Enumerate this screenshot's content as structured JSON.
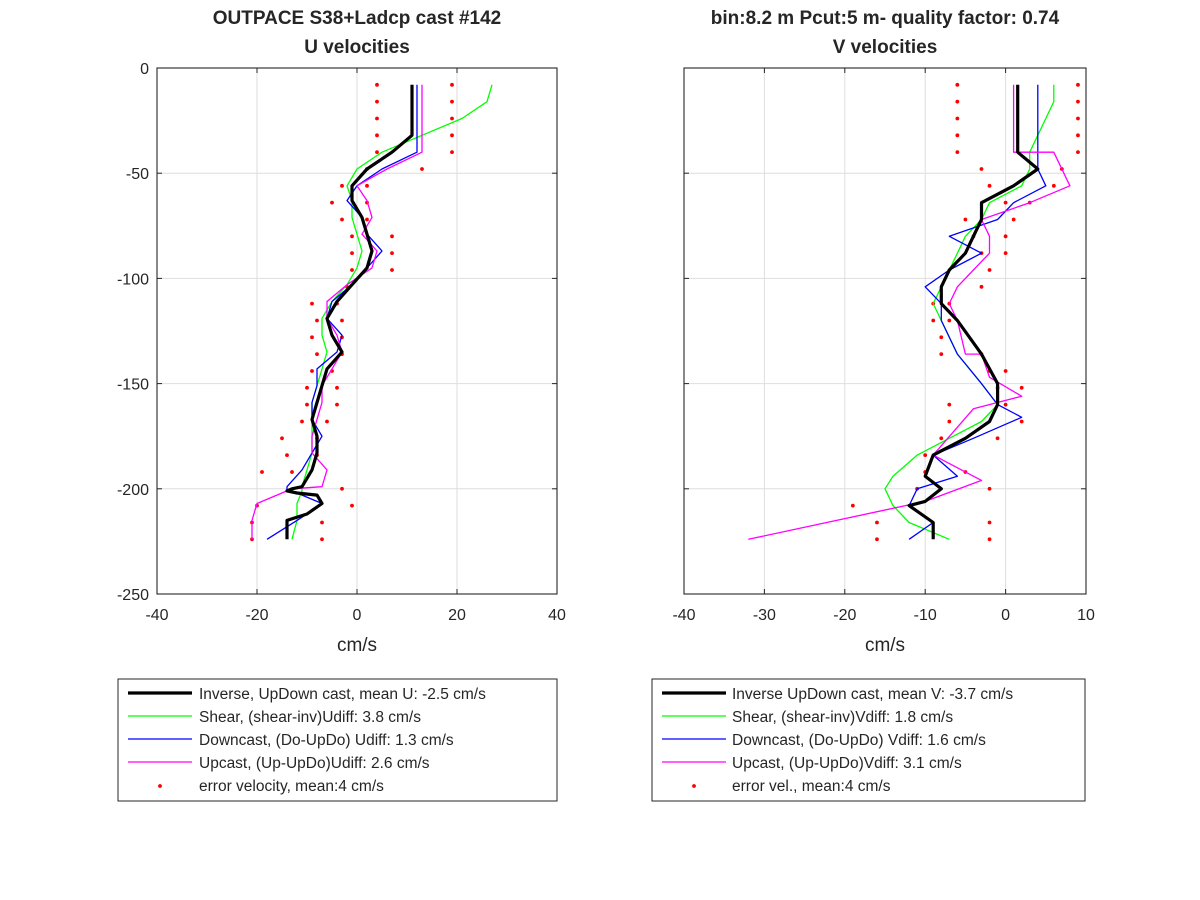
{
  "chart_data": [
    {
      "type": "line",
      "title": [
        "OUTPACE S38+Ladcp cast #142",
        "U velocities"
      ],
      "xlabel": "cm/s",
      "ylabel": "",
      "xlim": [
        -40,
        40
      ],
      "ylim": [
        -250,
        0
      ],
      "xticks": [
        -40,
        -20,
        0,
        20,
        40
      ],
      "yticks": [
        0,
        -50,
        -100,
        -150,
        -200,
        -250
      ],
      "grid": true,
      "legend_position": "below",
      "series": [
        {
          "name": "Inverse, UpDown cast, mean U:  -2.5 cm/s",
          "color": "#000000",
          "width": 3.2,
          "x": [
            11,
            11,
            11,
            11,
            7,
            2,
            -1,
            -1,
            1,
            2,
            3,
            2,
            -1,
            -4,
            -6,
            -5,
            -3,
            -6,
            -7,
            -8,
            -9,
            -8,
            -8,
            -9,
            -11,
            -13,
            -14,
            -12,
            -8,
            -7,
            -10,
            -14,
            -14
          ],
          "y": [
            -8,
            -16,
            -24,
            -32,
            -40,
            -48,
            -56,
            -63,
            -71,
            -79,
            -87,
            -95,
            -103,
            -111,
            -119,
            -127,
            -135,
            -143,
            -151,
            -159,
            -167,
            -175,
            -183,
            -191,
            -199,
            -200,
            -201,
            -202,
            -203,
            -207,
            -212,
            -215,
            -224
          ]
        },
        {
          "name": "Shear, (shear-inv)Udiff:  3.8 cm/s",
          "color": "#00ff00",
          "width": 1.3,
          "x": [
            27,
            26,
            21,
            13,
            5,
            0,
            -2,
            -1,
            -1,
            0,
            1,
            0,
            -2,
            -5,
            -7,
            -7,
            -6,
            -7,
            -8,
            -9,
            -9,
            -9,
            -9,
            -10,
            -11,
            -11,
            -11,
            -12,
            -12,
            -12,
            -13
          ],
          "y": [
            -8,
            -16,
            -24,
            -32,
            -40,
            -48,
            -56,
            -63,
            -71,
            -79,
            -87,
            -95,
            -103,
            -111,
            -119,
            -127,
            -135,
            -143,
            -151,
            -159,
            -167,
            -175,
            -183,
            -191,
            -199,
            -200,
            -201,
            -207,
            -212,
            -215,
            -224
          ]
        },
        {
          "name": "Downcast, (Do-UpDo) Udiff:  1.3 cm/s",
          "color": "#0000ff",
          "width": 1.3,
          "x": [
            12,
            12,
            12,
            12,
            12,
            5,
            0,
            -2,
            1,
            2,
            5,
            2,
            -1,
            -5,
            -6,
            -3,
            -4,
            -8,
            -8,
            -9,
            -9,
            -7,
            -9,
            -11,
            -14,
            -14,
            -14,
            -12,
            -7,
            -10,
            -12,
            -18
          ],
          "y": [
            -8,
            -16,
            -24,
            -32,
            -40,
            -48,
            -56,
            -63,
            -71,
            -79,
            -87,
            -95,
            -103,
            -111,
            -119,
            -127,
            -135,
            -143,
            -151,
            -159,
            -167,
            -175,
            -183,
            -191,
            -199,
            -200,
            -201,
            -202,
            -207,
            -212,
            -215,
            -224
          ]
        },
        {
          "name": "Upcast, (Up-UpDo)Udiff:  2.6 cm/s",
          "color": "#ff00ff",
          "width": 1.3,
          "x": [
            13,
            13,
            13,
            13,
            13,
            6,
            0,
            2,
            3,
            1,
            4,
            3,
            -2,
            -6,
            -6,
            -4,
            -3,
            -5,
            -7,
            -7,
            -8,
            -9,
            -9,
            -6,
            -7,
            -13,
            -14,
            -20,
            -21,
            -21
          ],
          "y": [
            -8,
            -16,
            -24,
            -32,
            -40,
            -48,
            -56,
            -63,
            -71,
            -79,
            -87,
            -95,
            -103,
            -111,
            -119,
            -127,
            -135,
            -143,
            -151,
            -159,
            -167,
            -175,
            -183,
            -191,
            -199,
            -200,
            -201,
            -207,
            -215,
            -224
          ]
        },
        {
          "name": "error velocity, mean:4 cm/s",
          "color": "#ff0000",
          "marker": "dot",
          "points": [
            [
              4,
              -8
            ],
            [
              19,
              -8
            ],
            [
              4,
              -16
            ],
            [
              19,
              -16
            ],
            [
              4,
              -24
            ],
            [
              19,
              -24
            ],
            [
              4,
              -32
            ],
            [
              19,
              -32
            ],
            [
              4,
              -40
            ],
            [
              19,
              -40
            ],
            [
              13,
              -48
            ],
            [
              2,
              -48
            ],
            [
              -3,
              -56
            ],
            [
              2,
              -56
            ],
            [
              -5,
              -64
            ],
            [
              2,
              -64
            ],
            [
              -3,
              -72
            ],
            [
              2,
              -72
            ],
            [
              -1,
              -80
            ],
            [
              7,
              -80
            ],
            [
              -1,
              -88
            ],
            [
              7,
              -88
            ],
            [
              -1,
              -96
            ],
            [
              7,
              -96
            ],
            [
              -2,
              -104
            ],
            [
              -9,
              -112
            ],
            [
              -4,
              -112
            ],
            [
              -8,
              -120
            ],
            [
              -3,
              -120
            ],
            [
              -9,
              -128
            ],
            [
              -3,
              -128
            ],
            [
              -8,
              -136
            ],
            [
              -3,
              -136
            ],
            [
              -9,
              -144
            ],
            [
              -5,
              -144
            ],
            [
              -10,
              -152
            ],
            [
              -4,
              -152
            ],
            [
              -10,
              -160
            ],
            [
              -4,
              -160
            ],
            [
              -11,
              -168
            ],
            [
              -6,
              -168
            ],
            [
              -15,
              -176
            ],
            [
              -8,
              -176
            ],
            [
              -14,
              -184
            ],
            [
              -8,
              -184
            ],
            [
              -19,
              -192
            ],
            [
              -13,
              -192
            ],
            [
              -3,
              -200
            ],
            [
              -20,
              -208
            ],
            [
              -1,
              -208
            ],
            [
              -21,
              -216
            ],
            [
              -7,
              -216
            ],
            [
              -21,
              -224
            ],
            [
              -7,
              -224
            ]
          ]
        }
      ]
    },
    {
      "type": "line",
      "title": [
        "bin:8.2 m  Pcut:5 m- quality factor:  0.74",
        "V velocities"
      ],
      "xlabel": "cm/s",
      "ylabel": "",
      "xlim": [
        -40,
        10
      ],
      "ylim": [
        -250,
        0
      ],
      "xticks": [
        -40,
        -30,
        -20,
        -10,
        0,
        10
      ],
      "yticks": [
        0,
        -50,
        -100,
        -150,
        -200,
        -250
      ],
      "grid": true,
      "legend_position": "below",
      "series": [
        {
          "name": "Inverse UpDown cast, mean V:  -3.7 cm/s",
          "color": "#000000",
          "width": 3.2,
          "x": [
            1.5,
            1.5,
            1.5,
            1.5,
            1.5,
            4,
            1,
            -3,
            -3,
            -4,
            -5,
            -7,
            -8,
            -8,
            -6,
            -3,
            -1,
            -1,
            -2,
            -5,
            -9,
            -10,
            -8,
            -10,
            -12,
            -9,
            -9,
            -9
          ],
          "y": [
            -8,
            -16,
            -24,
            -32,
            -40,
            -48,
            -56,
            -64,
            -72,
            -80,
            -88,
            -96,
            -104,
            -112,
            -120,
            -136,
            -150,
            -160,
            -168,
            -176,
            -184,
            -194,
            -200,
            -206,
            -208,
            -216,
            -218,
            -224
          ]
        },
        {
          "name": "Shear, (shear-inv)Vdiff:  1.8 cm/s",
          "color": "#00ff00",
          "width": 1.3,
          "x": [
            6,
            6,
            5,
            4,
            3,
            3,
            2,
            -2,
            -3,
            -5,
            -6,
            -7,
            -8,
            -9,
            -8,
            -6,
            -3,
            -1,
            -3,
            -7,
            -11,
            -14,
            -15,
            -14,
            -12,
            -7
          ],
          "y": [
            -8,
            -16,
            -24,
            -32,
            -40,
            -48,
            -56,
            -64,
            -72,
            -80,
            -88,
            -96,
            -104,
            -112,
            -120,
            -136,
            -150,
            -160,
            -168,
            -176,
            -184,
            -194,
            -200,
            -208,
            -216,
            -224
          ]
        },
        {
          "name": "Downcast, (Do-UpDo) Vdiff:  1.6 cm/s",
          "color": "#0000ff",
          "width": 1.3,
          "x": [
            4,
            4,
            4,
            4,
            4,
            4,
            5,
            1,
            -1,
            -7,
            -3,
            -7,
            -10,
            -8,
            -8,
            -6,
            -3,
            -1,
            2,
            -4,
            -9,
            -6,
            -11,
            -12,
            -9,
            -12
          ],
          "y": [
            -8,
            -16,
            -24,
            -32,
            -40,
            -48,
            -56,
            -64,
            -72,
            -80,
            -88,
            -96,
            -104,
            -112,
            -120,
            -136,
            -150,
            -160,
            -166,
            -176,
            -184,
            -194,
            -200,
            -208,
            -216,
            -224
          ]
        },
        {
          "name": "Upcast, (Up-UpDo)Vdiff:  3.1 cm/s",
          "color": "#ff00ff",
          "width": 1.3,
          "x": [
            1,
            1,
            1,
            1,
            1,
            6,
            8,
            3,
            -3,
            -2,
            -2,
            -4,
            -6,
            -7,
            -6,
            -5,
            -3,
            -2,
            2,
            -4,
            -9,
            -3,
            -10,
            -32
          ],
          "y": [
            -8,
            -16,
            -24,
            -32,
            -40,
            -40,
            -56,
            -64,
            -72,
            -80,
            -88,
            -96,
            -104,
            -112,
            -120,
            -136,
            -136,
            -147,
            -156,
            -162,
            -184,
            -196,
            -206,
            -224
          ]
        },
        {
          "name": "error vel., mean:4 cm/s",
          "color": "#ff0000",
          "marker": "dot",
          "points": [
            [
              -6,
              -8
            ],
            [
              9,
              -8
            ],
            [
              -6,
              -16
            ],
            [
              9,
              -16
            ],
            [
              -6,
              -24
            ],
            [
              9,
              -24
            ],
            [
              -6,
              -32
            ],
            [
              9,
              -32
            ],
            [
              -6,
              -40
            ],
            [
              9,
              -40
            ],
            [
              -3,
              -48
            ],
            [
              7,
              -48
            ],
            [
              -2,
              -56
            ],
            [
              6,
              -56
            ],
            [
              0,
              -64
            ],
            [
              3,
              -64
            ],
            [
              -5,
              -72
            ],
            [
              1,
              -72
            ],
            [
              -4,
              -80
            ],
            [
              0,
              -80
            ],
            [
              -3,
              -88
            ],
            [
              0,
              -88
            ],
            [
              -2,
              -96
            ],
            [
              -3,
              -104
            ],
            [
              -9,
              -112
            ],
            [
              -7,
              -112
            ],
            [
              -9,
              -120
            ],
            [
              -7,
              -120
            ],
            [
              -8,
              -128
            ],
            [
              -8,
              -136
            ],
            [
              -3,
              -136
            ],
            [
              -2,
              -144
            ],
            [
              0,
              -144
            ],
            [
              -1,
              -152
            ],
            [
              2,
              -152
            ],
            [
              -7,
              -160
            ],
            [
              0,
              -160
            ],
            [
              -7,
              -168
            ],
            [
              2,
              -168
            ],
            [
              -8,
              -176
            ],
            [
              -1,
              -176
            ],
            [
              -10,
              -184
            ],
            [
              -10,
              -192
            ],
            [
              -5,
              -192
            ],
            [
              -11,
              -200
            ],
            [
              -2,
              -200
            ],
            [
              -19,
              -208
            ],
            [
              -16,
              -216
            ],
            [
              -2,
              -216
            ],
            [
              -16,
              -224
            ],
            [
              -2,
              -224
            ]
          ]
        }
      ]
    }
  ]
}
